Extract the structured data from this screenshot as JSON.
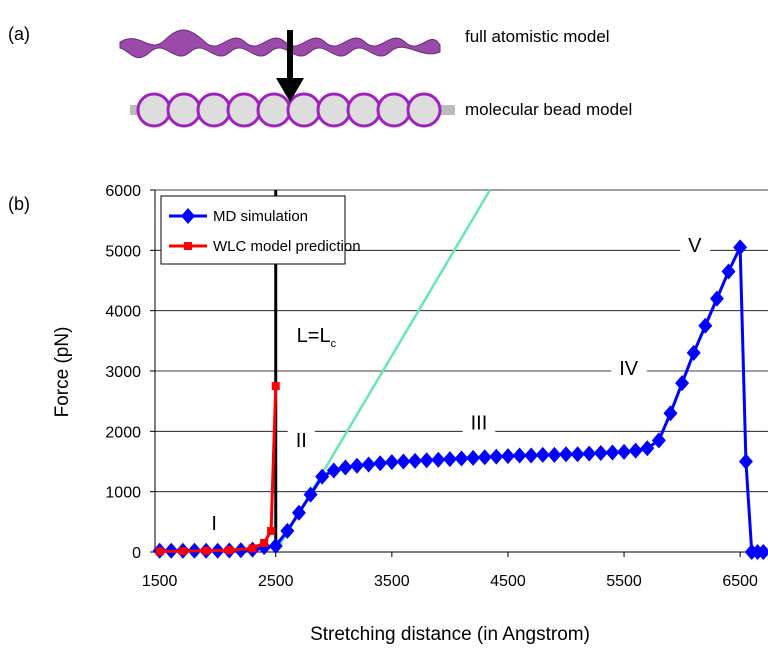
{
  "panel_a_label": "(a)",
  "panel_b_label": "(b)",
  "model_labels": [
    "full atomistic model",
    "molecular bead model"
  ],
  "chart_data": {
    "type": "line",
    "x_label": "Stretching distance (in Angstrom)",
    "y_label": "Force (pN)",
    "xlim": [
      1460,
      6740
    ],
    "ylim": [
      0,
      6000
    ],
    "xticks": [
      1500,
      2500,
      3500,
      4500,
      5500,
      6500
    ],
    "yticks": [
      0,
      1000,
      2000,
      3000,
      4000,
      5000,
      6000
    ],
    "grid": true,
    "legend": "top-left",
    "series": [
      {
        "name": "MD simulation",
        "color": "#0000ff",
        "marker": "diamond",
        "x": [
          1500,
          1600,
          1700,
          1800,
          1900,
          2000,
          2100,
          2200,
          2300,
          2400,
          2500,
          2600,
          2700,
          2800,
          2900,
          3000,
          3100,
          3200,
          3300,
          3400,
          3500,
          3600,
          3700,
          3800,
          3900,
          4000,
          4100,
          4200,
          4300,
          4400,
          4500,
          4600,
          4700,
          4800,
          4900,
          5000,
          5100,
          5200,
          5300,
          5400,
          5500,
          5600,
          5700,
          5800,
          5900,
          6000,
          6100,
          6200,
          6300,
          6400,
          6500,
          6550,
          6600,
          6650,
          6700
        ],
        "values": [
          20,
          20,
          20,
          20,
          20,
          20,
          25,
          30,
          40,
          80,
          100,
          350,
          650,
          950,
          1250,
          1350,
          1400,
          1430,
          1450,
          1470,
          1490,
          1500,
          1510,
          1520,
          1530,
          1540,
          1550,
          1560,
          1570,
          1580,
          1590,
          1600,
          1600,
          1610,
          1610,
          1620,
          1620,
          1630,
          1640,
          1650,
          1660,
          1680,
          1720,
          1850,
          2300,
          2800,
          3300,
          3750,
          4200,
          4650,
          5050,
          1500,
          0,
          0,
          0
        ]
      },
      {
        "name": "WLC model prediction",
        "color": "#ff0000",
        "marker": "square",
        "x": [
          1500,
          1700,
          1900,
          2100,
          2300,
          2400,
          2460,
          2500
        ],
        "values": [
          10,
          15,
          20,
          30,
          60,
          150,
          350,
          2750
        ]
      }
    ],
    "reference_lines": [
      {
        "color": "#000000",
        "x": [
          2500,
          2500
        ],
        "y": [
          0,
          6000
        ]
      },
      {
        "color": "#66e8b0",
        "x": [
          2500,
          4345
        ],
        "y": [
          0,
          6000
        ]
      }
    ],
    "annotations": [
      {
        "text": "I",
        "x": 1970,
        "y": 480
      },
      {
        "text": "II",
        "x": 2720,
        "y": 1860
      },
      {
        "text": "III",
        "x": 4250,
        "y": 2150
      },
      {
        "text": "IV",
        "x": 5540,
        "y": 3050
      },
      {
        "text": "V",
        "x": 6110,
        "y": 5090
      },
      {
        "text": "L=L",
        "subscript": "c",
        "x": 2850,
        "y": 3600
      }
    ]
  }
}
